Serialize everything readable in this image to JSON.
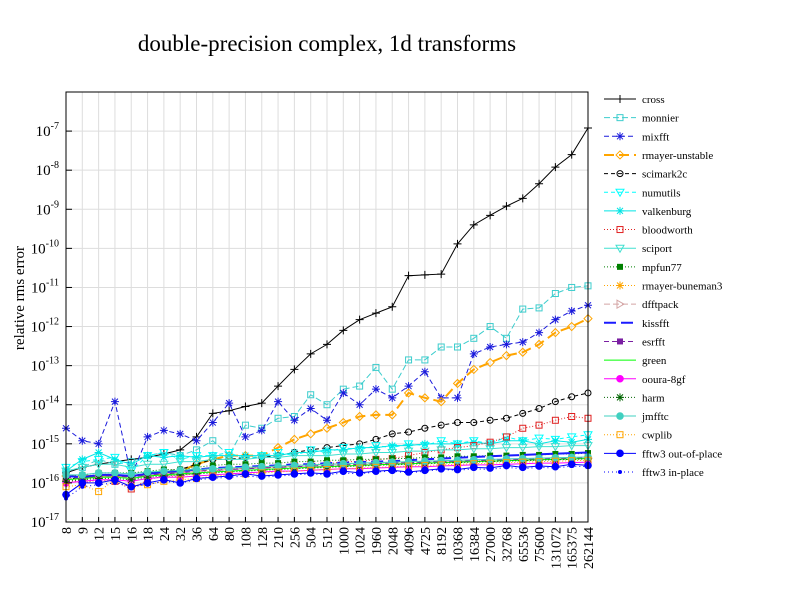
{
  "chart_data": {
    "type": "line",
    "title": "double-precision complex, 1d transforms",
    "xlabel": "",
    "ylabel": "relative rms error",
    "yscale": "log",
    "ylim_exp": [
      -17,
      -6
    ],
    "y_ticks": [
      {
        "base": "10",
        "exp": "-17"
      },
      {
        "base": "10",
        "exp": "-16"
      },
      {
        "base": "10",
        "exp": "-15"
      },
      {
        "base": "10",
        "exp": "-14"
      },
      {
        "base": "10",
        "exp": "-13"
      },
      {
        "base": "10",
        "exp": "-12"
      },
      {
        "base": "10",
        "exp": "-11"
      },
      {
        "base": "10",
        "exp": "-10"
      },
      {
        "base": "10",
        "exp": "-9"
      },
      {
        "base": "10",
        "exp": "-8"
      },
      {
        "base": "10",
        "exp": "-7"
      }
    ],
    "categories": [
      "8",
      "9",
      "12",
      "15",
      "16",
      "18",
      "24",
      "32",
      "36",
      "64",
      "80",
      "108",
      "128",
      "210",
      "256",
      "504",
      "512",
      "1000",
      "1024",
      "1960",
      "2048",
      "4096",
      "4725",
      "8192",
      "10368",
      "16384",
      "27000",
      "32768",
      "65536",
      "75600",
      "131072",
      "165375",
      "262144"
    ],
    "grid": true,
    "legend_position": "right",
    "series": [
      {
        "name": "cross",
        "color": "#000000",
        "dash": "",
        "marker": "plus",
        "values": [
          1.8e-16,
          2.5e-16,
          3e-16,
          3.5e-16,
          4e-16,
          4.5e-16,
          5.5e-16,
          7e-16,
          1.5e-15,
          6e-15,
          7e-15,
          9e-15,
          1.1e-14,
          3e-14,
          8e-14,
          2e-13,
          3.5e-13,
          8e-13,
          1.5e-12,
          2.2e-12,
          3.2e-12,
          2e-11,
          2.1e-11,
          2.2e-11,
          1.3e-10,
          4e-10,
          7e-10,
          1.2e-09,
          1.9e-09,
          4.5e-09,
          1.2e-08,
          2.5e-08,
          1.2e-07
        ]
      },
      {
        "name": "monnier",
        "color": "#3ccdcd",
        "dash": "6,3",
        "marker": "square",
        "values": [
          2e-16,
          2.5e-16,
          4e-16,
          3e-16,
          3.5e-16,
          5e-16,
          6e-16,
          5e-16,
          7e-16,
          1.2e-15,
          5e-16,
          3e-15,
          2.5e-15,
          4.5e-15,
          5e-15,
          1.8e-14,
          1e-14,
          2.5e-14,
          3e-14,
          9e-14,
          2.5e-14,
          1.4e-13,
          1.4e-13,
          3e-13,
          3e-13,
          5e-13,
          1e-12,
          5e-13,
          2.8e-12,
          3e-12,
          7e-12,
          1e-11,
          1.1e-11
        ]
      },
      {
        "name": "mixfft",
        "color": "#1a1adc",
        "dash": "5,3",
        "marker": "asterisk",
        "values": [
          2.5e-15,
          1.2e-15,
          1e-15,
          1.2e-14,
          1.5e-16,
          1.5e-15,
          2.2e-15,
          1.8e-15,
          1.2e-15,
          3.5e-15,
          1.1e-14,
          1.5e-15,
          2.2e-15,
          1.2e-14,
          4e-15,
          8e-15,
          4e-15,
          2e-14,
          1e-14,
          2.5e-14,
          1.5e-14,
          3e-14,
          7e-14,
          1.5e-14,
          1.5e-14,
          2e-13,
          3e-13,
          3.5e-13,
          4e-13,
          7e-13,
          1.5e-12,
          2.5e-12,
          3.5e-12
        ]
      },
      {
        "name": "rmayer-unstable",
        "color": "#ffa500",
        "dash": "10,5",
        "marker": "diamond",
        "values": [
          1.5e-16,
          1.5e-16,
          1.5e-16,
          1.5e-16,
          1.5e-16,
          1.5e-16,
          1.8e-16,
          2e-16,
          3e-16,
          4e-16,
          5e-16,
          5e-16,
          5e-16,
          8e-16,
          1.3e-15,
          1.8e-15,
          2.5e-15,
          3.5e-15,
          5e-15,
          5.5e-15,
          5.5e-15,
          2e-14,
          1.5e-14,
          1.2e-14,
          3.5e-14,
          8e-14,
          1.2e-13,
          1.8e-13,
          2.2e-13,
          3.5e-13,
          7e-13,
          1e-12,
          1.6e-12
        ]
      },
      {
        "name": "scimark2c",
        "color": "#000000",
        "dash": "4,3",
        "marker": "circle",
        "values": [
          1.3e-16,
          1.3e-16,
          1.5e-16,
          1.6e-16,
          1.5e-16,
          1.8e-16,
          2e-16,
          2.2e-16,
          3e-16,
          4e-16,
          4e-16,
          4.5e-16,
          4.5e-16,
          5e-16,
          6e-16,
          7e-16,
          8e-16,
          9e-16,
          1e-15,
          1.3e-15,
          1.8e-15,
          2e-15,
          2.5e-15,
          3e-15,
          3.5e-15,
          3.5e-15,
          4e-15,
          4.5e-15,
          6e-15,
          8e-15,
          1.2e-14,
          1.6e-14,
          2e-14
        ]
      },
      {
        "name": "numutils",
        "color": "#00ffff",
        "dash": "4,3",
        "marker": "tridown",
        "values": [
          2.5e-16,
          3.5e-16,
          4e-16,
          4.5e-16,
          2e-16,
          5e-16,
          6e-16,
          4e-16,
          5e-16,
          5e-16,
          6e-16,
          4e-16,
          5e-16,
          6e-16,
          5e-16,
          7e-16,
          6e-16,
          8e-16,
          7e-16,
          9e-16,
          8e-16,
          1e-15,
          9e-16,
          1.2e-15,
          1e-15,
          1.2e-15,
          1e-15,
          1.5e-15,
          1.2e-15,
          1.4e-15,
          1.3e-15,
          1.5e-15,
          1.7e-15
        ]
      },
      {
        "name": "valkenburg",
        "color": "#00e5e5",
        "dash": "",
        "marker": "asterisk",
        "values": [
          2e-16,
          4e-16,
          6e-16,
          4e-16,
          3e-16,
          5e-16,
          4.5e-16,
          5e-16,
          4.5e-16,
          5e-16,
          5e-16,
          5e-16,
          5e-16,
          5e-16,
          6e-16,
          6e-16,
          7e-16,
          7e-16,
          8e-16,
          8e-16,
          9e-16,
          9e-16,
          1e-15,
          1e-15,
          1e-15,
          1.1e-15,
          1e-15,
          1.2e-15,
          1.2e-15,
          1e-15,
          1.2e-15,
          1.1e-15,
          1.3e-15
        ]
      },
      {
        "name": "bloodworth",
        "color": "#e02020",
        "dash": "1,2",
        "marker": "square",
        "values": [
          1.2e-16,
          1e-16,
          1.2e-16,
          1.1e-16,
          7e-17,
          1.2e-16,
          1.5e-16,
          1.5e-16,
          1.8e-16,
          2e-16,
          2.2e-16,
          2.4e-16,
          2.5e-16,
          2.5e-16,
          2.8e-16,
          3e-16,
          3e-16,
          3.5e-16,
          3.5e-16,
          4e-16,
          4.2e-16,
          5e-16,
          6e-16,
          7e-16,
          8e-16,
          9e-16,
          1.1e-15,
          1.5e-15,
          2.5e-15,
          3e-15,
          4e-15,
          5e-15,
          4.5e-15
        ]
      },
      {
        "name": "sciport",
        "color": "#40e0d0",
        "dash": "",
        "marker": "tridown",
        "values": [
          2e-16,
          2.5e-16,
          3e-16,
          3e-16,
          2.5e-16,
          3e-16,
          3e-16,
          3.5e-16,
          3.5e-16,
          4e-16,
          4e-16,
          4e-16,
          4.5e-16,
          4.5e-16,
          5e-16,
          5e-16,
          5e-16,
          5.5e-16,
          5.5e-16,
          6e-16,
          6e-16,
          6.5e-16,
          6.5e-16,
          7e-16,
          7e-16,
          7.5e-16,
          7.5e-16,
          8e-16,
          8e-16,
          8.5e-16,
          8.5e-16,
          9e-16,
          9e-16
        ]
      },
      {
        "name": "mpfun77",
        "color": "#008000",
        "dash": "1,2",
        "marker": "fsquare",
        "values": [
          1.5e-16,
          1.6e-16,
          1.8e-16,
          1.8e-16,
          1.8e-16,
          2e-16,
          2.2e-16,
          2.2e-16,
          2.5e-16,
          2.8e-16,
          3e-16,
          3e-16,
          3.2e-16,
          3.2e-16,
          3.5e-16,
          3.5e-16,
          3.8e-16,
          3.8e-16,
          4e-16,
          4e-16,
          4.2e-16,
          4.2e-16,
          4.5e-16,
          4.5e-16,
          4.8e-16,
          4.8e-16,
          5e-16,
          5e-16,
          5.2e-16,
          5.2e-16,
          5.5e-16,
          5.5e-16,
          5.8e-16
        ]
      },
      {
        "name": "rmayer-buneman3",
        "color": "#ffa500",
        "dash": "1,2",
        "marker": "asterisk",
        "values": [
          1.2e-16,
          1.2e-16,
          1.4e-16,
          1.4e-16,
          1.3e-16,
          1.5e-16,
          1.7e-16,
          1.8e-16,
          2e-16,
          2.2e-16,
          2.3e-16,
          2.4e-16,
          2.5e-16,
          2.6e-16,
          2.8e-16,
          2.8e-16,
          3e-16,
          3e-16,
          3.2e-16,
          3.2e-16,
          3.4e-16,
          3.4e-16,
          3.6e-16,
          3.6e-16,
          3.8e-16,
          3.8e-16,
          4e-16,
          4e-16,
          4.2e-16,
          4.2e-16,
          4.4e-16,
          4.4e-16,
          4.6e-16
        ]
      },
      {
        "name": "dfftpack",
        "color": "#d4a5a5",
        "dash": "6,3",
        "marker": "triright",
        "values": [
          1.3e-16,
          1.3e-16,
          1.5e-16,
          1.5e-16,
          1.4e-16,
          1.6e-16,
          1.8e-16,
          1.8e-16,
          2e-16,
          2.1e-16,
          2.2e-16,
          2.3e-16,
          2.4e-16,
          2.5e-16,
          2.6e-16,
          2.6e-16,
          2.7e-16,
          2.8e-16,
          2.9e-16,
          3e-16,
          3.1e-16,
          3.2e-16,
          3.3e-16,
          3.4e-16,
          3.5e-16,
          3.6e-16,
          3.7e-16,
          3.8e-16,
          3.9e-16,
          4e-16,
          4.1e-16,
          4.2e-16,
          4.3e-16
        ]
      },
      {
        "name": "kissfft",
        "color": "#1a1aff",
        "dash": "12,5",
        "marker": "none",
        "values": [
          1.5e-16,
          1.4e-16,
          1.6e-16,
          1.6e-16,
          1.5e-16,
          1.7e-16,
          1.9e-16,
          2e-16,
          2.2e-16,
          2.4e-16,
          2.5e-16,
          2.6e-16,
          2.7e-16,
          2.8e-16,
          3e-16,
          3e-16,
          3.2e-16,
          3.3e-16,
          3.4e-16,
          3.5e-16,
          3.6e-16,
          3.8e-16,
          4e-16,
          4.2e-16,
          4.4e-16,
          4.6e-16,
          4.8e-16,
          5e-16,
          5.2e-16,
          5.4e-16,
          5.6e-16,
          5.8e-16,
          6e-16
        ]
      },
      {
        "name": "esrfft",
        "color": "#7a1fa2",
        "dash": "5,3",
        "marker": "fsquare",
        "values": [
          1.4e-16,
          1.3e-16,
          1.5e-16,
          1.5e-16,
          1.4e-16,
          1.6e-16,
          1.7e-16,
          1.8e-16,
          2e-16,
          2.1e-16,
          2.2e-16,
          2.3e-16,
          2.4e-16,
          2.5e-16,
          2.6e-16,
          2.7e-16,
          2.8e-16,
          2.9e-16,
          3e-16,
          3.1e-16,
          3.2e-16,
          3.3e-16,
          3.4e-16,
          3.5e-16,
          3.6e-16,
          3.7e-16,
          3.8e-16,
          3.9e-16,
          4e-16,
          4.1e-16,
          4.2e-16,
          4.3e-16,
          4.4e-16
        ]
      },
      {
        "name": "green",
        "color": "#00ff00",
        "dash": "",
        "marker": "none",
        "values": [
          1.2e-16,
          1.3e-16,
          1.4e-16,
          1.4e-16,
          1.3e-16,
          1.5e-16,
          1.6e-16,
          1.7e-16,
          1.8e-16,
          1.9e-16,
          2e-16,
          2.1e-16,
          2.2e-16,
          2.3e-16,
          2.4e-16,
          2.5e-16,
          2.6e-16,
          2.7e-16,
          2.8e-16,
          2.9e-16,
          3e-16,
          3.1e-16,
          3.2e-16,
          3.3e-16,
          3.4e-16,
          3.5e-16,
          3.6e-16,
          3.7e-16,
          3.8e-16,
          3.9e-16,
          4e-16,
          4.1e-16,
          4.2e-16
        ]
      },
      {
        "name": "ooura-8gf",
        "color": "#ff00ff",
        "dash": "",
        "marker": "fcircle",
        "values": [
          1e-16,
          1.1e-16,
          1.2e-16,
          1.2e-16,
          1.1e-16,
          1.3e-16,
          1.4e-16,
          1.4e-16,
          1.5e-16,
          1.6e-16,
          1.7e-16,
          1.8e-16,
          1.9e-16,
          2e-16,
          2e-16,
          2.1e-16,
          2.2e-16,
          2.3e-16,
          2.3e-16,
          2.4e-16,
          2.5e-16,
          2.6e-16,
          2.6e-16,
          2.7e-16,
          2.8e-16,
          2.9e-16,
          2.9e-16,
          3e-16,
          3.1e-16,
          3.2e-16,
          3.2e-16,
          3.3e-16,
          3.4e-16
        ]
      },
      {
        "name": "harm",
        "color": "#006400",
        "dash": "1,2",
        "marker": "asterisk",
        "values": [
          1.1e-16,
          1.2e-16,
          1.3e-16,
          1.3e-16,
          1.2e-16,
          1.4e-16,
          1.5e-16,
          1.6e-16,
          1.7e-16,
          1.8e-16,
          1.9e-16,
          2e-16,
          2.1e-16,
          2.2e-16,
          2.3e-16,
          2.4e-16,
          2.5e-16,
          2.6e-16,
          2.7e-16,
          2.8e-16,
          2.9e-16,
          3e-16,
          3.1e-16,
          3.2e-16,
          3.3e-16,
          3.4e-16,
          3.5e-16,
          3.6e-16,
          3.7e-16,
          3.8e-16,
          3.9e-16,
          4e-16,
          4.1e-16
        ]
      },
      {
        "name": "jmfftc",
        "color": "#40d0c0",
        "dash": "",
        "marker": "fcircle",
        "values": [
          1.6e-16,
          1.6e-16,
          1.8e-16,
          1.8e-16,
          1.7e-16,
          1.9e-16,
          2e-16,
          2.1e-16,
          2.2e-16,
          2.3e-16,
          2.4e-16,
          2.5e-16,
          2.6e-16,
          2.7e-16,
          2.8e-16,
          2.9e-16,
          3e-16,
          3.1e-16,
          3.2e-16,
          3.3e-16,
          3.4e-16,
          3.5e-16,
          3.6e-16,
          3.7e-16,
          3.8e-16,
          3.9e-16,
          4e-16,
          4.1e-16,
          4.2e-16,
          4.3e-16,
          4.4e-16,
          4.5e-16,
          4.6e-16
        ]
      },
      {
        "name": "cwplib",
        "color": "#ffa500",
        "dash": "1,2",
        "marker": "square",
        "values": [
          8e-17,
          9e-17,
          6e-17,
          1.2e-16,
          8e-17,
          9e-17,
          1.1e-16,
          1.2e-16,
          1.3e-16,
          1.5e-16,
          1.6e-16,
          1.7e-16,
          1.8e-16,
          1.9e-16,
          2e-16,
          2.1e-16,
          2.2e-16,
          2.3e-16,
          2.4e-16,
          2.5e-16,
          2.6e-16,
          2.7e-16,
          2.8e-16,
          2.9e-16,
          3e-16,
          3.1e-16,
          3.2e-16,
          3.3e-16,
          3.4e-16,
          3.5e-16,
          3.6e-16,
          3.7e-16,
          3.8e-16
        ]
      },
      {
        "name": "fftw3 out-of-place",
        "color": "#0000ff",
        "dash": "",
        "marker": "fcircle",
        "values": [
          5e-17,
          1e-16,
          1e-16,
          1.2e-16,
          8e-17,
          1e-16,
          1.2e-16,
          1e-16,
          1.3e-16,
          1.4e-16,
          1.5e-16,
          1.7e-16,
          1.5e-16,
          1.6e-16,
          1.7e-16,
          1.8e-16,
          1.7e-16,
          2e-16,
          1.8e-16,
          2e-16,
          2.1e-16,
          1.9e-16,
          2.1e-16,
          2.3e-16,
          2.2e-16,
          2.5e-16,
          2.4e-16,
          2.8e-16,
          2.5e-16,
          2.7e-16,
          2.6e-16,
          3e-16,
          2.8e-16
        ]
      },
      {
        "name": "fftw3 in-place",
        "color": "#0000ff",
        "dash": "1,3",
        "marker": "fsmallcircle",
        "values": [
          4e-17,
          8e-17,
          9e-17,
          1e-16,
          8e-17,
          9e-17,
          1.1e-16,
          1e-16,
          1.2e-16,
          1.3e-16,
          1.4e-16,
          1.5e-16,
          1.4e-16,
          1.5e-16,
          1.6e-16,
          1.7e-16,
          1.6e-16,
          1.8e-16,
          1.7e-16,
          1.9e-16,
          2e-16,
          1.8e-16,
          2e-16,
          2.2e-16,
          2.1e-16,
          2.3e-16,
          2.2e-16,
          2.5e-16,
          2.3e-16,
          2.5e-16,
          2.4e-16,
          2.7e-16,
          2.6e-16
        ]
      }
    ]
  }
}
